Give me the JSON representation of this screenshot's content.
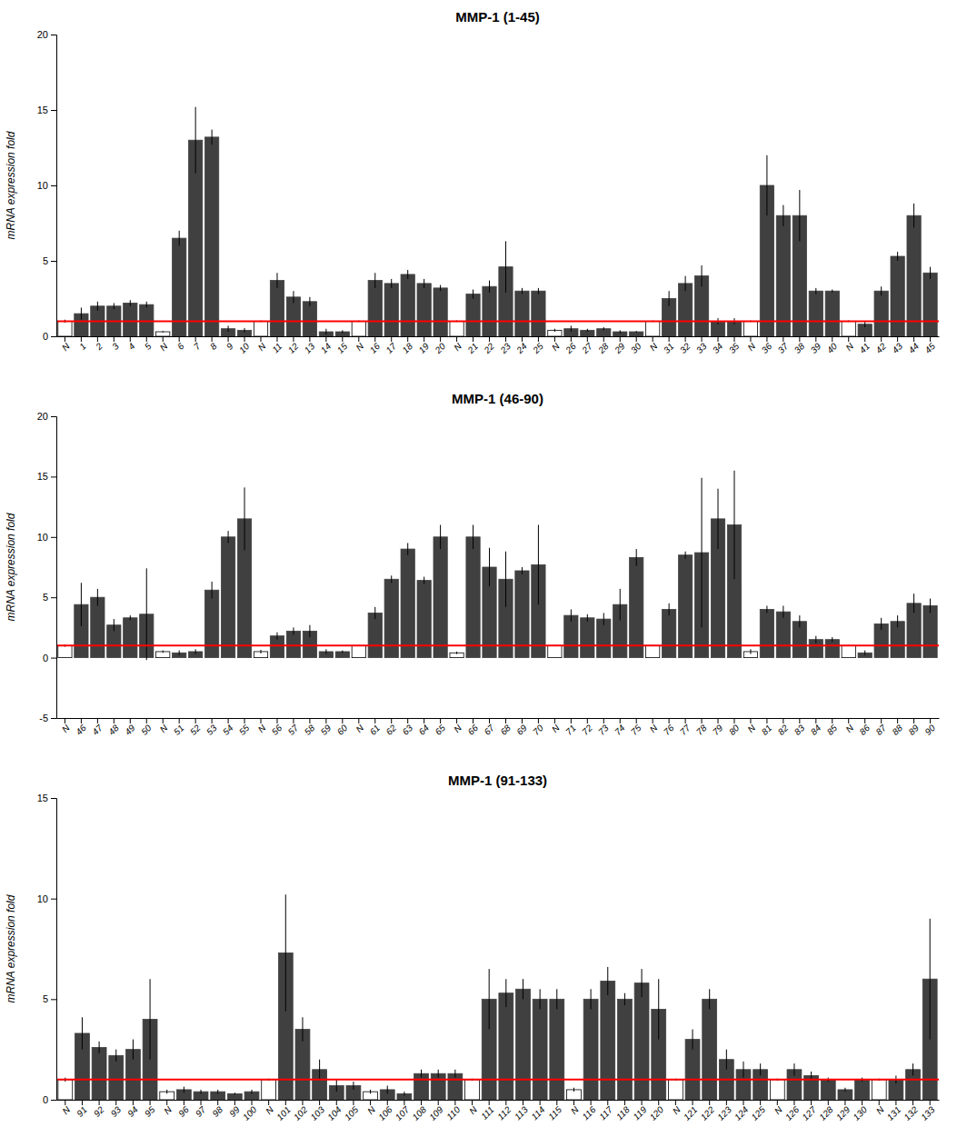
{
  "chart_data": [
    {
      "type": "bar",
      "title": "MMP-1 (1-45)",
      "ylabel": "mRNA expression fold",
      "categories": [
        "N",
        "1",
        "2",
        "3",
        "4",
        "5",
        "N",
        "6",
        "7",
        "8",
        "9",
        "10",
        "N",
        "11",
        "12",
        "13",
        "14",
        "15",
        "N",
        "16",
        "17",
        "18",
        "19",
        "20",
        "N",
        "21",
        "22",
        "23",
        "24",
        "25",
        "N",
        "26",
        "27",
        "28",
        "29",
        "30",
        "N",
        "31",
        "32",
        "33",
        "34",
        "35",
        "N",
        "36",
        "37",
        "38",
        "39",
        "40",
        "N",
        "41",
        "42",
        "43",
        "44",
        "45"
      ],
      "values": [
        1.0,
        1.5,
        2.0,
        2.0,
        2.2,
        2.1,
        0.3,
        6.5,
        13.0,
        13.2,
        0.5,
        0.4,
        1.0,
        3.7,
        2.6,
        2.3,
        0.3,
        0.3,
        1.0,
        3.7,
        3.5,
        4.1,
        3.5,
        3.2,
        1.0,
        2.8,
        3.3,
        4.6,
        3.0,
        3.0,
        0.4,
        0.5,
        0.4,
        0.5,
        0.3,
        0.3,
        1.0,
        2.5,
        3.5,
        4.0,
        1.0,
        1.0,
        1.0,
        10.0,
        8.0,
        8.0,
        3.0,
        3.0,
        1.0,
        0.8,
        3.0,
        5.3,
        8.0,
        4.2
      ],
      "errors": [
        0.1,
        0.4,
        0.3,
        0.2,
        0.2,
        0.2,
        0.05,
        0.5,
        2.2,
        0.5,
        0.2,
        0.15,
        0.05,
        0.5,
        0.4,
        0.3,
        0.2,
        0.1,
        0.05,
        0.5,
        0.3,
        0.3,
        0.3,
        0.2,
        0.05,
        0.3,
        0.4,
        1.7,
        0.2,
        0.2,
        0.1,
        0.2,
        0.1,
        0.1,
        0.1,
        0.05,
        0.05,
        0.5,
        0.5,
        0.7,
        0.2,
        0.2,
        0.05,
        2.0,
        0.7,
        1.7,
        0.2,
        0.1,
        0.05,
        0.2,
        0.3,
        0.3,
        0.8,
        0.4
      ],
      "colors": [
        "white",
        "#404040",
        "#404040",
        "#404040",
        "#404040",
        "#404040",
        "white",
        "#404040",
        "#404040",
        "#404040",
        "#404040",
        "#404040",
        "white",
        "#404040",
        "#404040",
        "#404040",
        "#404040",
        "#404040",
        "white",
        "#404040",
        "#404040",
        "#404040",
        "#404040",
        "#404040",
        "white",
        "#404040",
        "#404040",
        "#404040",
        "#404040",
        "#404040",
        "white",
        "#404040",
        "#404040",
        "#404040",
        "#404040",
        "#404040",
        "white",
        "#404040",
        "#404040",
        "#404040",
        "#404040",
        "#404040",
        "white",
        "#404040",
        "#404040",
        "#404040",
        "#404040",
        "#404040",
        "white",
        "#404040",
        "#404040",
        "#404040",
        "#404040",
        "#404040"
      ],
      "ref_line": 1.0,
      "ref_line_color": "#FF0000",
      "ylim": [
        0,
        20
      ],
      "yticks": [
        0,
        5,
        10,
        15,
        20
      ],
      "grid": false
    },
    {
      "type": "bar",
      "title": "MMP-1 (46-90)",
      "ylabel": "mRNA expression fold",
      "categories": [
        "N",
        "46",
        "47",
        "48",
        "49",
        "50",
        "N",
        "51",
        "52",
        "53",
        "54",
        "55",
        "N",
        "56",
        "57",
        "58",
        "59",
        "60",
        "N",
        "61",
        "62",
        "63",
        "64",
        "65",
        "N",
        "66",
        "67",
        "68",
        "69",
        "70",
        "N",
        "71",
        "72",
        "73",
        "74",
        "75",
        "N",
        "76",
        "77",
        "78",
        "79",
        "80",
        "N",
        "81",
        "82",
        "83",
        "84",
        "85",
        "N",
        "86",
        "87",
        "88",
        "89",
        "90"
      ],
      "values": [
        1.0,
        4.4,
        5.0,
        2.7,
        3.3,
        3.6,
        0.5,
        0.4,
        0.5,
        5.6,
        10.0,
        11.5,
        0.5,
        1.8,
        2.2,
        2.2,
        0.5,
        0.5,
        1.0,
        3.7,
        6.5,
        9.0,
        6.4,
        10.0,
        0.4,
        10.0,
        7.5,
        6.5,
        7.2,
        7.7,
        1.0,
        3.5,
        3.3,
        3.2,
        4.4,
        8.3,
        1.0,
        4.0,
        8.5,
        8.7,
        11.5,
        11.0,
        0.5,
        4.0,
        3.8,
        3.0,
        1.5,
        1.5,
        1.0,
        0.4,
        2.8,
        3.0,
        4.5,
        4.3
      ],
      "errors": [
        0.1,
        1.8,
        0.7,
        0.5,
        0.2,
        3.8,
        0.1,
        0.2,
        0.2,
        0.7,
        0.5,
        2.6,
        0.15,
        0.3,
        0.3,
        0.5,
        0.2,
        0.1,
        0.05,
        0.5,
        0.3,
        0.5,
        0.3,
        1.0,
        0.1,
        1.0,
        1.6,
        2.3,
        0.3,
        3.3,
        0.05,
        0.5,
        0.3,
        0.5,
        1.3,
        0.7,
        0.05,
        0.5,
        0.3,
        6.2,
        2.5,
        4.5,
        0.2,
        0.3,
        0.5,
        0.5,
        0.3,
        0.2,
        0.05,
        0.2,
        0.5,
        0.5,
        0.8,
        0.6
      ],
      "colors": [
        "white",
        "#404040",
        "#404040",
        "#404040",
        "#404040",
        "#404040",
        "white",
        "#404040",
        "#404040",
        "#404040",
        "#404040",
        "#404040",
        "white",
        "#404040",
        "#404040",
        "#404040",
        "#404040",
        "#404040",
        "white",
        "#404040",
        "#404040",
        "#404040",
        "#404040",
        "#404040",
        "white",
        "#404040",
        "#404040",
        "#404040",
        "#404040",
        "#404040",
        "white",
        "#404040",
        "#404040",
        "#404040",
        "#404040",
        "#404040",
        "white",
        "#404040",
        "#404040",
        "#404040",
        "#404040",
        "#404040",
        "white",
        "#404040",
        "#404040",
        "#404040",
        "#404040",
        "#404040",
        "white",
        "#404040",
        "#404040",
        "#404040",
        "#404040",
        "#404040"
      ],
      "ref_line": 1.0,
      "ref_line_color": "#FF0000",
      "ylim": [
        -5,
        20
      ],
      "yticks": [
        -5,
        0,
        5,
        10,
        15,
        20
      ],
      "grid": false
    },
    {
      "type": "bar",
      "title": "MMP-1 (91-133)",
      "ylabel": "mRNA expression fold",
      "categories": [
        "N",
        "91",
        "92",
        "93",
        "94",
        "95",
        "N",
        "96",
        "97",
        "98",
        "99",
        "100",
        "N",
        "101",
        "102",
        "103",
        "104",
        "105",
        "N",
        "106",
        "107",
        "108",
        "109",
        "110",
        "N",
        "111",
        "112",
        "113",
        "114",
        "115",
        "N",
        "116",
        "117",
        "118",
        "119",
        "120",
        "N",
        "121",
        "122",
        "123",
        "124",
        "125",
        "N",
        "126",
        "127",
        "128",
        "129",
        "130",
        "N",
        "131",
        "132",
        "133"
      ],
      "values": [
        1.0,
        3.3,
        2.6,
        2.2,
        2.5,
        4.0,
        0.4,
        0.5,
        0.4,
        0.4,
        0.3,
        0.4,
        1.0,
        7.3,
        3.5,
        1.5,
        0.7,
        0.7,
        0.4,
        0.5,
        0.3,
        1.3,
        1.3,
        1.3,
        1.0,
        5.0,
        5.3,
        5.5,
        5.0,
        5.0,
        0.5,
        5.0,
        5.9,
        5.0,
        5.8,
        4.5,
        1.0,
        3.0,
        5.0,
        2.0,
        1.5,
        1.5,
        1.0,
        1.5,
        1.2,
        1.0,
        0.5,
        1.0,
        1.0,
        1.0,
        1.5,
        6.0
      ],
      "errors": [
        0.1,
        0.8,
        0.3,
        0.3,
        0.5,
        2.0,
        0.1,
        0.15,
        0.1,
        0.1,
        0.05,
        0.1,
        0.05,
        2.9,
        0.6,
        0.5,
        0.3,
        0.2,
        0.1,
        0.2,
        0.1,
        0.2,
        0.2,
        0.2,
        0.05,
        1.5,
        0.7,
        0.5,
        0.5,
        0.5,
        0.1,
        0.5,
        0.7,
        0.3,
        0.7,
        1.5,
        0.05,
        0.5,
        0.5,
        0.5,
        0.4,
        0.3,
        0.05,
        0.3,
        0.2,
        0.1,
        0.1,
        0.1,
        0.05,
        0.2,
        0.3,
        3.0
      ],
      "colors": [
        "white",
        "#404040",
        "#404040",
        "#404040",
        "#404040",
        "#404040",
        "white",
        "#404040",
        "#404040",
        "#404040",
        "#404040",
        "#404040",
        "white",
        "#404040",
        "#404040",
        "#404040",
        "#404040",
        "#404040",
        "white",
        "#404040",
        "#404040",
        "#404040",
        "#404040",
        "#404040",
        "white",
        "#404040",
        "#404040",
        "#404040",
        "#404040",
        "#404040",
        "white",
        "#404040",
        "#404040",
        "#404040",
        "#404040",
        "#404040",
        "white",
        "#404040",
        "#404040",
        "#404040",
        "#404040",
        "#404040",
        "white",
        "#404040",
        "#404040",
        "#404040",
        "#404040",
        "#404040",
        "white",
        "#404040",
        "#404040",
        "#404040"
      ],
      "ref_line": 1.0,
      "ref_line_color": "#FF0000",
      "ylim": [
        0,
        15
      ],
      "yticks": [
        0,
        5,
        10,
        15
      ],
      "grid": false
    }
  ]
}
